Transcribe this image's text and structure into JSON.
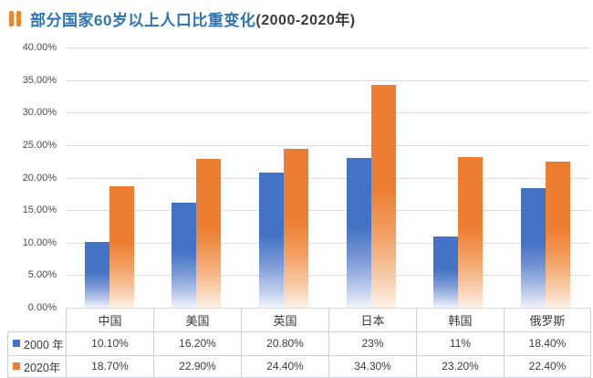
{
  "title": {
    "main": "部分国家60岁以上人口比重变化",
    "suffix": "(2000-2020年)"
  },
  "colors": {
    "title_text": "#2E74B5",
    "title_icon": "#F0862B",
    "series_2000": "#4472C4",
    "series_2020": "#ED7D31",
    "gridline": "#DBDBDB",
    "table_border": "#CBD2D9"
  },
  "chart_data": {
    "type": "bar",
    "title": "部分国家60岁以上人口比重变化(2000-2020年)",
    "categories": [
      "中国",
      "美国",
      "英国",
      "日本",
      "韩国",
      "俄罗斯"
    ],
    "series": [
      {
        "name": "2000 年",
        "color": "#4472C4",
        "values": [
          10.1,
          16.2,
          20.8,
          23,
          11,
          18.4
        ],
        "labels": [
          "10.10%",
          "16.20%",
          "20.80%",
          "23%",
          "11%",
          "18.40%"
        ]
      },
      {
        "name": "2020年",
        "color": "#ED7D31",
        "values": [
          18.7,
          22.9,
          24.4,
          34.3,
          23.2,
          22.4
        ],
        "labels": [
          "18.70%",
          "22.90%",
          "24.40%",
          "34.30%",
          "23.20%",
          "22.40%"
        ]
      }
    ],
    "y_ticks": [
      "40.00%",
      "35.00%",
      "30.00%",
      "25.00%",
      "20.00%",
      "15.00%",
      "10.00%",
      "5.00%",
      "0.00%"
    ],
    "ylim": [
      0,
      40
    ],
    "grid": true,
    "legend_position": "table-left",
    "xlabel": "",
    "ylabel": ""
  }
}
